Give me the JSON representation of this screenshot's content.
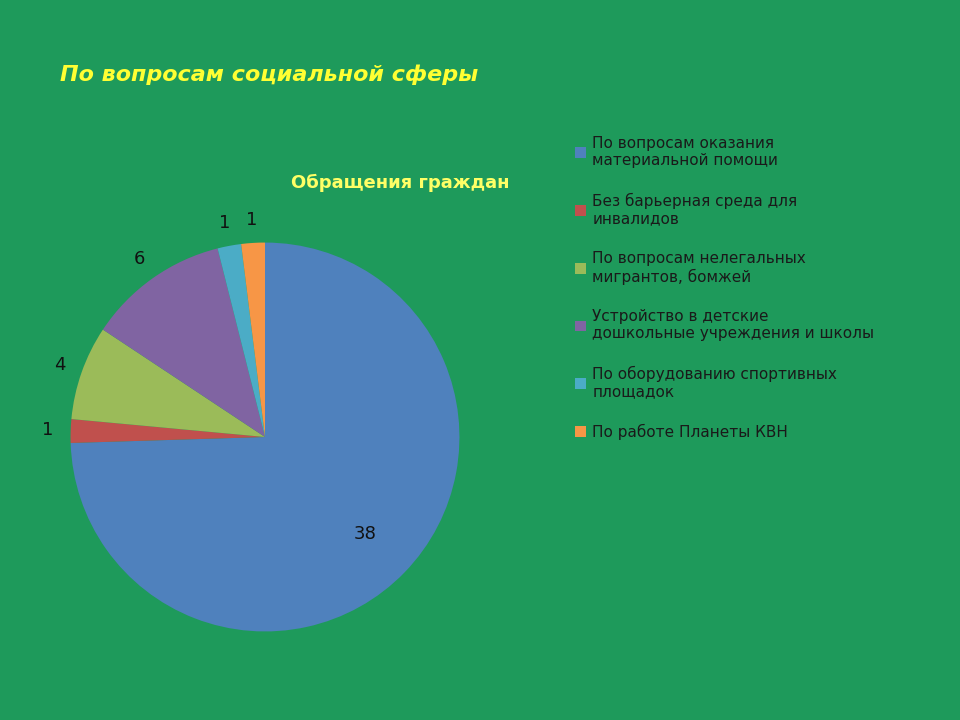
{
  "slide_title": "По вопросам социальной сферы",
  "chart_data": {
    "type": "pie",
    "title": "Обращения граждан",
    "categories": [
      "По вопросам оказания материальной помощи",
      "Без барьерная среда для инвалидов",
      "По вопросам нелегальных мигрантов, бомжей",
      "Устройство в детские дошкольные учреждения и школы",
      "По оборудованию спортивных площадок",
      "По работе Планеты КВН"
    ],
    "values": [
      38,
      1,
      4,
      6,
      1,
      1
    ],
    "colors": [
      "#4F81BD",
      "#C0504D",
      "#9BBB59",
      "#8064A2",
      "#4BACC6",
      "#F79646"
    ],
    "data_labels": true,
    "legend": "right"
  }
}
